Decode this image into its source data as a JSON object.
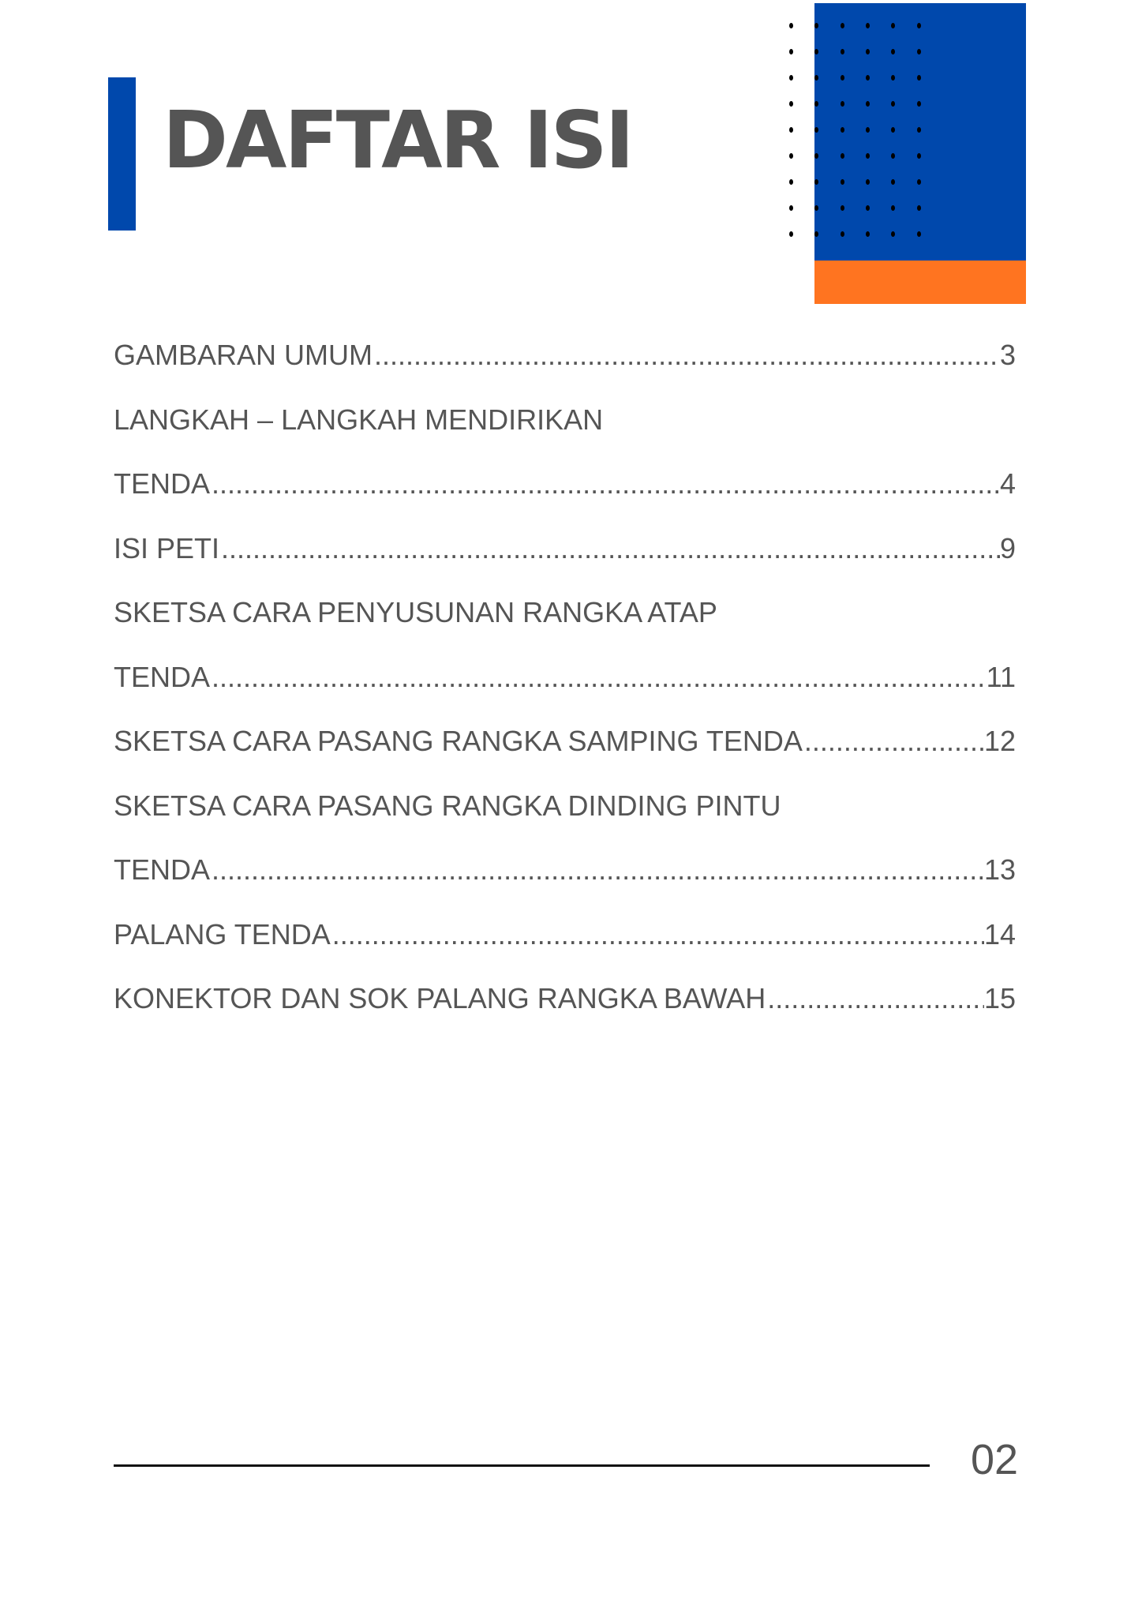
{
  "header": {
    "title": "DAFTAR ISI",
    "colors": {
      "accent_blue": "#0048ac",
      "accent_orange": "#ff7420",
      "text": "#555555"
    }
  },
  "toc": {
    "entries": [
      {
        "lead": "",
        "title": "GAMBARAN UMUM",
        "page": "3"
      },
      {
        "lead": "LANGKAH – LANGKAH MENDIRIKAN",
        "title": "TENDA",
        "page": "4"
      },
      {
        "lead": "",
        "title": "ISI PETI",
        "page": "9"
      },
      {
        "lead": "SKETSA CARA PENYUSUNAN RANGKA ATAP",
        "title": "TENDA",
        "page": "11"
      },
      {
        "lead": "",
        "title": "SKETSA CARA PASANG RANGKA SAMPING TENDA",
        "page": "12"
      },
      {
        "lead": "SKETSA CARA PASANG RANGKA DINDING PINTU",
        "title": "TENDA",
        "page": "13"
      },
      {
        "lead": "",
        "title": "PALANG TENDA",
        "page": "14"
      },
      {
        "lead": "",
        "title": "KONEKTOR DAN SOK PALANG RANGKA BAWAH",
        "page": "15"
      }
    ]
  },
  "footer": {
    "page_number": "02"
  }
}
